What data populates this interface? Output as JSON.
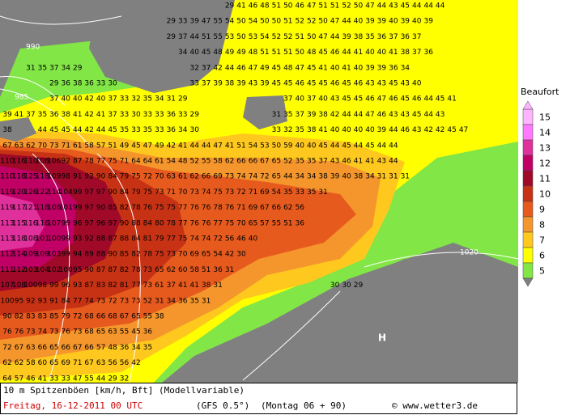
{
  "legend": {
    "title": "Beaufort",
    "levels": [
      15,
      14,
      13,
      12,
      11,
      10,
      9,
      8,
      7,
      6,
      5
    ],
    "colors": [
      "#ffb4ff",
      "#ff78ff",
      "#e0309c",
      "#c00064",
      "#a00a28",
      "#c83214",
      "#e65a1e",
      "#f5962d",
      "#ffc81e",
      "#ffff00",
      "#82e646"
    ]
  },
  "isobars": [
    "990",
    "985",
    "1020",
    "H"
  ],
  "footer": {
    "product": "10 m Spitzenböen [km/h, Bft] (Modellvariable)",
    "date": "Freitag, 16-12-2011  00 UTC",
    "model": "(GFS 0.5°)",
    "run": "(Montag 06 + 90)",
    "source": "© www.wetter3.de"
  },
  "grid": {
    "rows": [
      [
        [
          29,
          41,
          46,
          48,
          51,
          50,
          46,
          47,
          51,
          51,
          52,
          50,
          47,
          44,
          43,
          45,
          44,
          44,
          44
        ]
      ],
      [
        [
          29,
          33,
          39,
          47,
          55,
          54,
          50,
          54,
          50,
          50,
          51,
          52,
          52,
          50,
          47,
          44,
          40,
          39,
          39,
          40,
          39,
          40,
          39
        ]
      ],
      [
        [
          29,
          37,
          44,
          51,
          55,
          53,
          50,
          53,
          54,
          52,
          52,
          51,
          50,
          47,
          44,
          39,
          38,
          35,
          36,
          37,
          36,
          37
        ]
      ],
      [
        [
          34,
          40,
          45,
          48,
          49,
          49,
          48,
          51,
          51,
          51,
          50,
          48,
          45,
          46,
          44,
          41,
          40,
          40,
          41,
          38,
          37,
          36
        ]
      ],
      [
        [
          31,
          35,
          37,
          34,
          29
        ],
        [
          32,
          37,
          42,
          44,
          46,
          47,
          49,
          45,
          48,
          47,
          45,
          41,
          40,
          41,
          40,
          39,
          39,
          36,
          34
        ]
      ],
      [
        [
          29,
          36,
          38,
          36,
          33,
          30
        ],
        [
          33,
          37,
          39,
          38,
          39,
          43,
          39,
          45,
          45,
          46,
          45,
          45,
          46,
          45,
          46,
          43,
          43,
          45,
          43,
          40
        ]
      ],
      [
        [
          37,
          40,
          40,
          42,
          40,
          37,
          33,
          32,
          35,
          34,
          31,
          29
        ],
        [
          37,
          40,
          37,
          40,
          43,
          45,
          45,
          46,
          47,
          46,
          45,
          46,
          44,
          45,
          41
        ]
      ],
      [
        [
          39,
          41,
          37,
          35,
          36,
          38,
          41,
          42,
          41,
          37,
          33,
          30,
          33,
          33,
          36,
          33,
          29
        ],
        [
          31,
          35,
          37,
          39,
          38,
          42,
          44,
          44,
          47,
          46,
          43,
          43,
          45,
          44,
          43
        ]
      ],
      [
        [
          38
        ],
        [
          44,
          45,
          45,
          44,
          42,
          44,
          45,
          35,
          33,
          35,
          33,
          36,
          34,
          30
        ],
        [
          33,
          32,
          35,
          38,
          41,
          40,
          40,
          40,
          40,
          39,
          44,
          46,
          43,
          42,
          42,
          45,
          47
        ]
      ],
      [
        [
          67,
          63,
          62,
          70,
          73,
          71,
          61,
          58,
          57,
          51,
          49,
          45,
          47,
          49,
          42,
          41,
          44,
          44,
          47,
          41,
          51,
          54,
          53,
          50,
          59,
          40,
          40,
          45,
          44,
          45,
          44,
          45,
          44,
          44
        ]
      ],
      [
        [
          110,
          116,
          110,
          108,
          106,
          92,
          87,
          78,
          77,
          75,
          71,
          64,
          64,
          61,
          54,
          48,
          52,
          55,
          58,
          62,
          66,
          66,
          67,
          65,
          52,
          35,
          35,
          37,
          43,
          46,
          41,
          41,
          43,
          44
        ]
      ],
      [
        [
          110,
          118,
          125,
          118,
          109,
          98,
          91,
          92,
          90,
          84,
          79,
          75,
          72,
          70,
          63,
          61,
          62,
          66,
          69,
          73,
          74,
          74,
          72,
          65,
          44,
          34,
          34,
          38,
          39,
          40,
          38,
          34,
          31,
          31,
          31
        ]
      ],
      [
        [
          119,
          120,
          126,
          122,
          114,
          104,
          99,
          97,
          97,
          90,
          84,
          79,
          75,
          73,
          71,
          70,
          73,
          74,
          75,
          73,
          72,
          71,
          69,
          54,
          35,
          33,
          35,
          31
        ]
      ],
      [
        [
          119,
          117,
          121,
          118,
          106,
          101,
          99,
          97,
          90,
          85,
          82,
          78,
          76,
          75,
          75,
          77,
          76,
          76,
          78,
          76,
          71,
          69,
          67,
          66,
          62,
          56
        ]
      ],
      [
        [
          113,
          115,
          116,
          116,
          107,
          99,
          96,
          97,
          96,
          97,
          90,
          88,
          84,
          80,
          78,
          77,
          76,
          76,
          77,
          75,
          70,
          65,
          57,
          55,
          51,
          36
        ]
      ],
      [
        [
          113,
          118,
          108,
          101,
          100,
          99,
          93,
          92,
          88,
          87,
          88,
          84,
          81,
          79,
          77,
          75,
          74,
          74,
          72,
          56,
          46,
          40
        ]
      ],
      [
        [
          112,
          114,
          109,
          109,
          103,
          99,
          94,
          89,
          88,
          90,
          85,
          82,
          78,
          75,
          73,
          70,
          69,
          65,
          54,
          42,
          30
        ]
      ],
      [
        [
          111,
          112,
          103,
          104,
          102,
          100,
          95,
          90,
          87,
          87,
          82,
          78,
          73,
          65,
          62,
          60,
          58,
          51,
          36,
          31
        ]
      ],
      [
        [
          107,
          108,
          100,
          98,
          99,
          96,
          93,
          87,
          83,
          82,
          81,
          77,
          73,
          61,
          37,
          41,
          41,
          38,
          31
        ],
        [
          30,
          30,
          29
        ]
      ],
      [
        [
          100,
          95,
          92,
          93,
          91,
          84,
          77,
          74,
          73,
          72,
          73,
          73,
          52,
          31,
          34,
          36,
          35,
          31
        ]
      ],
      [
        [
          90,
          82,
          83,
          83,
          85,
          79,
          72,
          68,
          66,
          68,
          67,
          65,
          55,
          38
        ]
      ],
      [
        [
          76,
          76,
          73,
          74,
          73,
          76,
          73,
          68,
          65,
          63,
          55,
          45,
          36
        ]
      ],
      [
        [
          72,
          67,
          63,
          66,
          65,
          66,
          67,
          66,
          57,
          48,
          36,
          34,
          35
        ]
      ],
      [
        [
          62,
          62,
          58,
          60,
          65,
          69,
          71,
          67,
          63,
          56,
          56,
          42
        ]
      ],
      [
        [
          64,
          57,
          46,
          41,
          33,
          33,
          47,
          55,
          44,
          29,
          32
        ]
      ]
    ]
  }
}
